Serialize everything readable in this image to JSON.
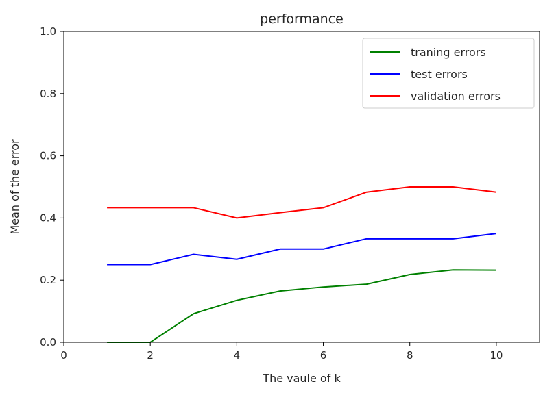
{
  "chart_data": {
    "type": "line",
    "title": "performance",
    "xlabel": "The vaule of k",
    "ylabel": "Mean of the error",
    "xlim": [
      0,
      11
    ],
    "ylim": [
      0,
      1.0
    ],
    "xticks": [
      "0",
      "2",
      "4",
      "6",
      "8",
      "10"
    ],
    "yticks": [
      "0.0",
      "0.2",
      "0.4",
      "0.6",
      "0.8",
      "1.0"
    ],
    "grid": false,
    "legend_position": "top-right",
    "x": [
      1,
      2,
      3,
      4,
      5,
      6,
      7,
      8,
      9,
      10
    ],
    "series": [
      {
        "name": "traning errors",
        "color": "#008000",
        "values": [
          0.0,
          0.0,
          0.092,
          0.135,
          0.165,
          0.178,
          0.187,
          0.218,
          0.233,
          0.232
        ]
      },
      {
        "name": "test errors",
        "color": "#0000ff",
        "values": [
          0.25,
          0.25,
          0.283,
          0.267,
          0.3,
          0.3,
          0.333,
          0.333,
          0.333,
          0.35
        ]
      },
      {
        "name": "validation errors",
        "color": "#ff0000",
        "values": [
          0.433,
          0.433,
          0.433,
          0.4,
          0.417,
          0.433,
          0.483,
          0.5,
          0.5,
          0.483
        ]
      }
    ]
  }
}
